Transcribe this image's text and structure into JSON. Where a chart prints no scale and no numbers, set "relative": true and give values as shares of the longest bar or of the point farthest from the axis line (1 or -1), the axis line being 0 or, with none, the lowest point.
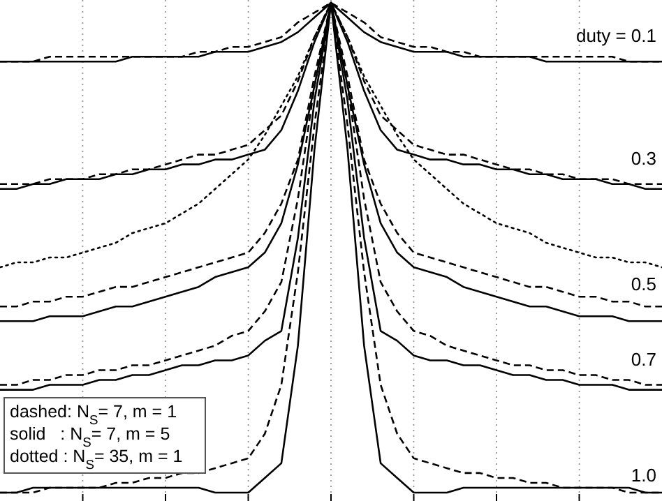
{
  "chart_data": {
    "type": "line",
    "relative": true,
    "grid": "x",
    "categories": [
      null,
      null,
      null,
      null,
      null,
      null,
      null,
      null,
      null,
      null,
      null,
      null,
      null,
      null,
      null,
      null,
      null,
      null,
      null,
      null,
      null,
      null,
      null,
      null,
      null,
      null,
      null,
      null,
      null,
      null,
      null,
      null,
      null,
      null,
      null,
      null,
      null,
      null,
      null,
      null,
      null
    ],
    "series": [
      {
        "color": "#000000",
        "line_style": "solid",
        "values": [
          0.88,
          0.88,
          0.88,
          0.88,
          0.88,
          0.88,
          0.88,
          0.88,
          0.89,
          0.89,
          0.89,
          0.89,
          0.89,
          0.9,
          0.9,
          0.9,
          0.91,
          0.92,
          0.94,
          0.97,
          1,
          0.97,
          0.94,
          0.92,
          0.91,
          0.9,
          0.9,
          0.9,
          0.89,
          0.89,
          0.89,
          0.89,
          0.89,
          0.88,
          0.88,
          0.88,
          0.88,
          0.88,
          0.88,
          0.88,
          0.88
        ]
      },
      {
        "color": "#000000",
        "line_style": "dashed",
        "values": [
          0.88,
          0.88,
          0.88,
          0.89,
          0.89,
          0.89,
          0.89,
          0.89,
          0.89,
          0.89,
          0.89,
          0.89,
          0.9,
          0.9,
          0.91,
          0.91,
          0.92,
          0.93,
          0.96,
          0.98,
          1,
          0.98,
          0.96,
          0.93,
          0.92,
          0.91,
          0.91,
          0.9,
          0.9,
          0.89,
          0.89,
          0.89,
          0.89,
          0.89,
          0.89,
          0.89,
          0.89,
          0.89,
          0.88,
          0.88,
          0.88
        ]
      },
      {
        "color": "#000000",
        "line_style": "solid",
        "values": [
          0.62,
          0.62,
          0.63,
          0.63,
          0.64,
          0.64,
          0.64,
          0.65,
          0.65,
          0.66,
          0.66,
          0.67,
          0.67,
          0.68,
          0.68,
          0.69,
          0.7,
          0.74,
          0.82,
          0.92,
          1,
          0.92,
          0.82,
          0.74,
          0.7,
          0.69,
          0.68,
          0.68,
          0.67,
          0.67,
          0.66,
          0.66,
          0.65,
          0.65,
          0.64,
          0.64,
          0.64,
          0.63,
          0.63,
          0.62,
          0.62
        ]
      },
      {
        "color": "#000000",
        "line_style": "dashed",
        "values": [
          0.63,
          0.63,
          0.63,
          0.64,
          0.64,
          0.64,
          0.65,
          0.65,
          0.66,
          0.66,
          0.67,
          0.68,
          0.69,
          0.69,
          0.7,
          0.71,
          0.74,
          0.77,
          0.84,
          0.93,
          1,
          0.93,
          0.84,
          0.77,
          0.74,
          0.71,
          0.7,
          0.69,
          0.69,
          0.68,
          0.67,
          0.66,
          0.66,
          0.65,
          0.65,
          0.64,
          0.64,
          0.64,
          0.63,
          0.63,
          0.63
        ]
      },
      {
        "color": "#000000",
        "line_style": "dotted",
        "values": [
          0.46,
          0.47,
          0.47,
          0.48,
          0.48,
          0.49,
          0.5,
          0.51,
          0.53,
          0.54,
          0.55,
          0.57,
          0.59,
          0.62,
          0.65,
          0.68,
          0.73,
          0.79,
          0.85,
          0.93,
          1,
          0.93,
          0.85,
          0.79,
          0.73,
          0.68,
          0.65,
          0.62,
          0.59,
          0.57,
          0.55,
          0.54,
          0.53,
          0.51,
          0.5,
          0.49,
          0.48,
          0.48,
          0.47,
          0.47,
          0.46
        ]
      },
      {
        "color": "#000000",
        "line_style": "solid",
        "values": [
          0.35,
          0.35,
          0.35,
          0.36,
          0.36,
          0.36,
          0.37,
          0.38,
          0.38,
          0.39,
          0.4,
          0.41,
          0.42,
          0.44,
          0.45,
          0.46,
          0.49,
          0.55,
          0.67,
          0.83,
          1,
          0.83,
          0.67,
          0.55,
          0.49,
          0.46,
          0.45,
          0.44,
          0.42,
          0.41,
          0.4,
          0.39,
          0.38,
          0.38,
          0.37,
          0.36,
          0.36,
          0.36,
          0.35,
          0.35,
          0.35
        ]
      },
      {
        "color": "#000000",
        "line_style": "dashed",
        "values": [
          0.38,
          0.38,
          0.39,
          0.39,
          0.4,
          0.4,
          0.41,
          0.42,
          0.42,
          0.43,
          0.44,
          0.45,
          0.46,
          0.47,
          0.48,
          0.49,
          0.53,
          0.59,
          0.68,
          0.85,
          1,
          0.85,
          0.68,
          0.59,
          0.53,
          0.49,
          0.48,
          0.47,
          0.46,
          0.45,
          0.44,
          0.43,
          0.42,
          0.42,
          0.41,
          0.4,
          0.4,
          0.39,
          0.39,
          0.38,
          0.38
        ]
      },
      {
        "color": "#000000",
        "line_style": "solid",
        "values": [
          0.21,
          0.21,
          0.21,
          0.22,
          0.22,
          0.22,
          0.23,
          0.23,
          0.24,
          0.24,
          0.25,
          0.26,
          0.26,
          0.27,
          0.27,
          0.28,
          0.31,
          0.33,
          0.52,
          0.8,
          1,
          0.8,
          0.52,
          0.33,
          0.31,
          0.28,
          0.27,
          0.27,
          0.26,
          0.26,
          0.25,
          0.24,
          0.24,
          0.23,
          0.23,
          0.22,
          0.22,
          0.22,
          0.21,
          0.21,
          0.21
        ]
      },
      {
        "color": "#000000",
        "line_style": "dashed",
        "values": [
          0.22,
          0.22,
          0.23,
          0.23,
          0.24,
          0.24,
          0.25,
          0.25,
          0.26,
          0.26,
          0.27,
          0.28,
          0.29,
          0.3,
          0.32,
          0.33,
          0.37,
          0.43,
          0.6,
          0.83,
          1,
          0.83,
          0.6,
          0.43,
          0.37,
          0.33,
          0.32,
          0.3,
          0.29,
          0.28,
          0.27,
          0.26,
          0.26,
          0.25,
          0.25,
          0.24,
          0.24,
          0.23,
          0.23,
          0.22,
          0.22
        ]
      },
      {
        "color": "#000000",
        "line_style": "solid",
        "values": [
          0,
          0,
          0.01,
          0.01,
          0.01,
          0.01,
          0.01,
          0.01,
          0.01,
          0.01,
          0.01,
          0.01,
          0.01,
          0,
          0,
          0,
          0.03,
          0.06,
          0.3,
          0.7,
          1,
          0.7,
          0.3,
          0.06,
          0.03,
          0,
          0,
          0,
          0.01,
          0.01,
          0.01,
          0.01,
          0.01,
          0.01,
          0.01,
          0.01,
          0.01,
          0.01,
          0.01,
          0,
          0
        ]
      },
      {
        "color": "#000000",
        "line_style": "dashed",
        "values": [
          0,
          0,
          0,
          0.01,
          0.01,
          0.01,
          0.01,
          0.02,
          0.02,
          0.03,
          0.03,
          0.04,
          0.04,
          0.05,
          0.06,
          0.07,
          0.12,
          0.22,
          0.45,
          0.75,
          1,
          0.75,
          0.45,
          0.22,
          0.12,
          0.07,
          0.06,
          0.05,
          0.04,
          0.04,
          0.03,
          0.03,
          0.02,
          0.02,
          0.01,
          0.01,
          0.01,
          0.01,
          0,
          0,
          0
        ]
      }
    ],
    "annotations": [
      "duty = 0.1",
      "0.3",
      "0.5",
      "0.7",
      "1.0",
      "dashed: N$_{S}$= 7, m = 1",
      "solid   : N$_{S}$= 7, m = 5",
      "dotted : N$_{S}$= 35, m = 1"
    ]
  }
}
